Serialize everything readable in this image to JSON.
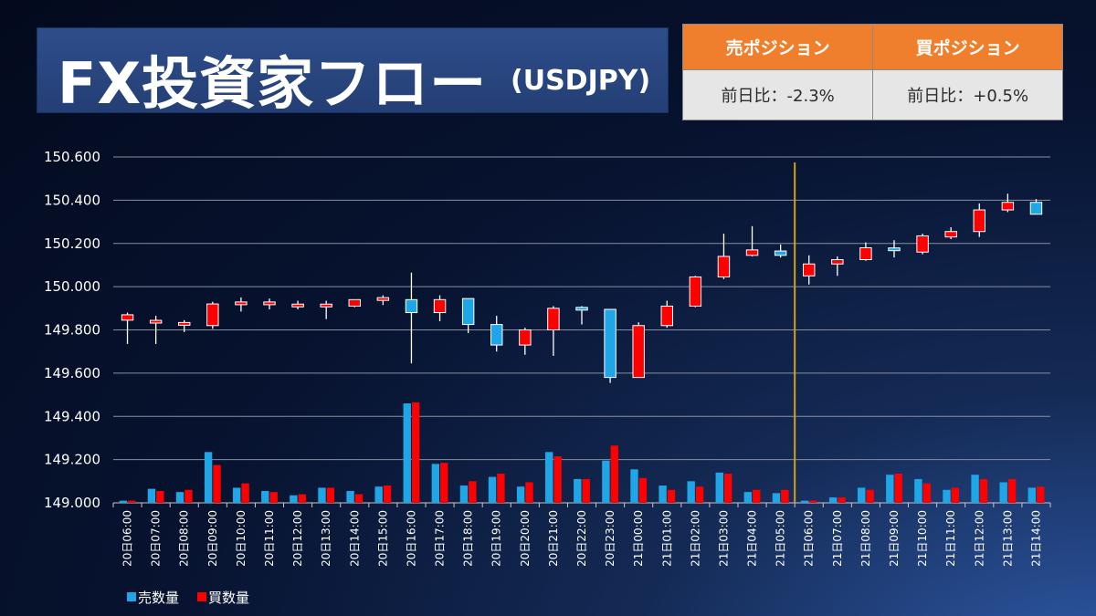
{
  "header": {
    "title": "FX投資家フロー",
    "pair": "(USDJPY)"
  },
  "positions": {
    "sell_label": "売ポジション",
    "buy_label": "買ポジション",
    "sell_change": "前日比：-2.3%",
    "buy_change": "前日比：+0.5%"
  },
  "colors": {
    "sell": "#1ea6e6",
    "buy": "#ff0000",
    "header": "#ef7f2c",
    "marker": "#d4a017"
  },
  "chart_data": {
    "type": "candlestick+bar",
    "ylim": [
      149.0,
      150.6
    ],
    "y_ticks": [
      "150.600",
      "150.400",
      "150.200",
      "150.000",
      "149.800",
      "149.600",
      "149.400",
      "149.200",
      "149.000"
    ],
    "categories": [
      "20日06:00",
      "20日07:00",
      "20日08:00",
      "20日09:00",
      "20日10:00",
      "20日11:00",
      "20日12:00",
      "20日13:00",
      "20日14:00",
      "20日15:00",
      "20日16:00",
      "20日17:00",
      "20日18:00",
      "20日19:00",
      "20日20:00",
      "20日21:00",
      "20日22:00",
      "20日23:00",
      "21日00:00",
      "21日01:00",
      "21日02:00",
      "21日03:00",
      "21日04:00",
      "21日05:00",
      "21日06:00",
      "21日07:00",
      "21日08:00",
      "21日09:00",
      "21日10:00",
      "21日11:00",
      "21日12:00",
      "21日13:00",
      "21日14:00"
    ],
    "candles": [
      {
        "o": 149.845,
        "h": 149.88,
        "l": 149.735,
        "c": 149.87
      },
      {
        "o": 149.83,
        "h": 149.865,
        "l": 149.735,
        "c": 149.84
      },
      {
        "o": 149.82,
        "h": 149.845,
        "l": 149.79,
        "c": 149.83
      },
      {
        "o": 149.82,
        "h": 149.93,
        "l": 149.805,
        "c": 149.92
      },
      {
        "o": 149.92,
        "h": 149.95,
        "l": 149.885,
        "c": 149.925
      },
      {
        "o": 149.92,
        "h": 149.945,
        "l": 149.895,
        "c": 149.925
      },
      {
        "o": 149.905,
        "h": 149.935,
        "l": 149.895,
        "c": 149.915
      },
      {
        "o": 149.91,
        "h": 149.935,
        "l": 149.85,
        "c": 149.915
      },
      {
        "o": 149.91,
        "h": 149.94,
        "l": 149.905,
        "c": 149.94
      },
      {
        "o": 149.94,
        "h": 149.96,
        "l": 149.915,
        "c": 149.945
      },
      {
        "o": 149.94,
        "h": 150.065,
        "l": 149.645,
        "c": 149.88
      },
      {
        "o": 149.88,
        "h": 149.96,
        "l": 149.84,
        "c": 149.94
      },
      {
        "o": 149.945,
        "h": 149.945,
        "l": 149.785,
        "c": 149.825
      },
      {
        "o": 149.825,
        "h": 149.865,
        "l": 149.7,
        "c": 149.73
      },
      {
        "o": 149.73,
        "h": 149.81,
        "l": 149.685,
        "c": 149.8
      },
      {
        "o": 149.8,
        "h": 149.91,
        "l": 149.68,
        "c": 149.9
      },
      {
        "o": 149.9,
        "h": 149.91,
        "l": 149.825,
        "c": 149.895
      },
      {
        "o": 149.895,
        "h": 149.895,
        "l": 149.555,
        "c": 149.58
      },
      {
        "o": 149.58,
        "h": 149.835,
        "l": 149.58,
        "c": 149.82
      },
      {
        "o": 149.82,
        "h": 149.935,
        "l": 149.81,
        "c": 149.91
      },
      {
        "o": 149.91,
        "h": 150.05,
        "l": 149.905,
        "c": 150.045
      },
      {
        "o": 150.045,
        "h": 150.245,
        "l": 150.035,
        "c": 150.14
      },
      {
        "o": 150.145,
        "h": 150.28,
        "l": 150.14,
        "c": 150.17
      },
      {
        "o": 150.165,
        "h": 150.195,
        "l": 150.135,
        "c": 150.145
      },
      {
        "o": 150.05,
        "h": 150.145,
        "l": 150.01,
        "c": 150.105
      },
      {
        "o": 150.105,
        "h": 150.14,
        "l": 150.05,
        "c": 150.125
      },
      {
        "o": 150.125,
        "h": 150.205,
        "l": 150.12,
        "c": 150.18
      },
      {
        "o": 150.175,
        "h": 150.215,
        "l": 150.135,
        "c": 150.165
      },
      {
        "o": 150.16,
        "h": 150.245,
        "l": 150.15,
        "c": 150.235
      },
      {
        "o": 150.23,
        "h": 150.275,
        "l": 150.22,
        "c": 150.255
      },
      {
        "o": 150.255,
        "h": 150.385,
        "l": 150.23,
        "c": 150.355
      },
      {
        "o": 150.355,
        "h": 150.43,
        "l": 150.345,
        "c": 150.39
      },
      {
        "o": 150.39,
        "h": 150.405,
        "l": 150.335,
        "c": 150.335
      }
    ],
    "sell_volume": [
      149.01,
      149.065,
      149.05,
      149.235,
      149.07,
      149.055,
      149.035,
      149.07,
      149.055,
      149.075,
      149.46,
      149.18,
      149.08,
      149.12,
      149.075,
      149.235,
      149.11,
      149.195,
      149.155,
      149.08,
      149.1,
      149.14,
      149.05,
      149.045,
      149.01,
      149.025,
      149.07,
      149.13,
      149.11,
      149.06,
      149.13,
      149.095,
      149.07
    ],
    "buy_volume": [
      149.01,
      149.055,
      149.06,
      149.175,
      149.09,
      149.05,
      149.04,
      149.07,
      149.04,
      149.08,
      149.465,
      149.185,
      149.1,
      149.135,
      149.095,
      149.215,
      149.11,
      149.265,
      149.115,
      149.06,
      149.075,
      149.135,
      149.06,
      149.06,
      149.01,
      149.025,
      149.06,
      149.135,
      149.09,
      149.07,
      149.11,
      149.11,
      149.075
    ],
    "divider_after_category": "21日05:00",
    "legend": [
      "売数量",
      "買数量"
    ]
  }
}
